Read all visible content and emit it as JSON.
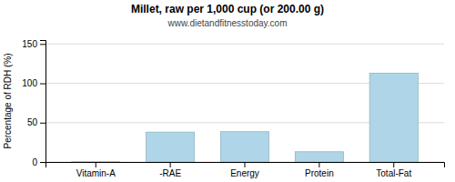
{
  "chart_data": {
    "type": "bar",
    "title": "Millet, raw per 1,000 cup (or 200.00 g)",
    "subtitle": "www.dietandfitnesstoday.com",
    "ylabel": "Percentage of RDH (%)",
    "categories": [
      "Vitamin-A",
      "-RAE",
      "Energy",
      "Protein",
      "Total-Fat"
    ],
    "values": [
      0.3,
      38,
      38.5,
      13,
      113
    ],
    "color": "#aed6e8",
    "ylim": [
      0,
      155
    ],
    "yticks": [
      0,
      50,
      100,
      150
    ],
    "grid": true
  }
}
